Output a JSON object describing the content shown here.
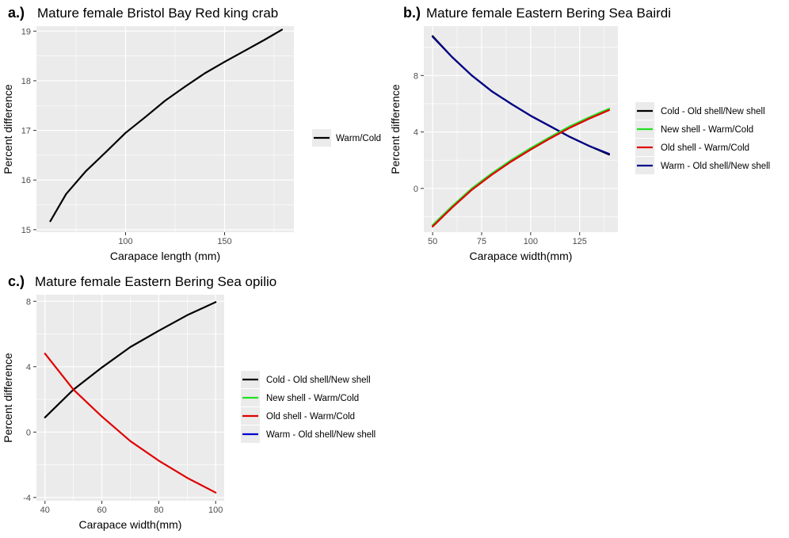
{
  "colors": {
    "panel_bg": "#EBEBEB",
    "grid": "#FFFFFF",
    "tick_text": "#4D4D4D",
    "text": "#000000",
    "legend_key_bg": "#EBEBEB"
  },
  "chart_data": [
    {
      "id": "a",
      "type": "line",
      "tag": "a.)",
      "title": "Mature female Bristol Bay Red king crab",
      "xlabel": "Carapace length (mm)",
      "ylabel": "Percent difference",
      "xlim": [
        55,
        185
      ],
      "ylim": [
        14.95,
        19.1
      ],
      "xticks": [
        100,
        150
      ],
      "yticks": [
        15,
        16,
        17,
        18,
        19
      ],
      "xminor": [
        75,
        125,
        175
      ],
      "yminor": [
        15.5,
        16.5,
        17.5,
        18.5
      ],
      "grid": true,
      "legend_position": "right",
      "legend": [
        {
          "name": "Warm/Cold",
          "color": "#000000"
        }
      ],
      "series": [
        {
          "name": "Warm/Cold",
          "color": "#000000",
          "x": [
            62,
            70,
            80,
            90,
            100,
            110,
            120,
            130,
            140,
            150,
            160,
            170,
            179
          ],
          "y": [
            15.17,
            15.72,
            16.18,
            16.56,
            16.95,
            17.27,
            17.6,
            17.88,
            18.15,
            18.38,
            18.6,
            18.82,
            19.03
          ]
        }
      ]
    },
    {
      "id": "b",
      "type": "line",
      "tag": "b.)",
      "title": "Mature female Eastern Bering Sea Bairdi",
      "xlabel": "Carapace width(mm)",
      "ylabel": "Percent difference",
      "xlim": [
        45.5,
        144.5
      ],
      "ylim": [
        -3.1,
        11.5
      ],
      "xticks": [
        50,
        75,
        100,
        125
      ],
      "yticks": [
        0,
        4,
        8
      ],
      "xminor": [
        62.5,
        87.5,
        112.5,
        137.5
      ],
      "yminor": [
        -2,
        2,
        6,
        10
      ],
      "grid": true,
      "legend_position": "right",
      "legend": [
        {
          "name": "Cold - Old shell/New shell",
          "color": "#000000"
        },
        {
          "name": "New shell - Warm/Cold",
          "color": "#22E022"
        },
        {
          "name": "Old shell - Warm/Cold",
          "color": "#E00000"
        },
        {
          "name": "Warm - Old shell/New shell",
          "color": "#00008B"
        }
      ],
      "series": [
        {
          "name": "Cold - Old shell/New shell",
          "color": "#000000",
          "x": [
            50,
            60,
            70,
            80,
            90,
            100,
            110,
            120,
            130,
            140
          ],
          "y": [
            10.8,
            9.3,
            8.0,
            6.9,
            6.0,
            5.15,
            4.4,
            3.65,
            3.0,
            2.4
          ]
        },
        {
          "name": "Warm - Old shell/New shell",
          "color": "#00008B",
          "x": [
            50,
            60,
            70,
            80,
            90,
            100,
            110,
            120,
            130,
            140
          ],
          "y": [
            10.75,
            9.3,
            8.0,
            6.9,
            6.0,
            5.15,
            4.4,
            3.65,
            3.0,
            2.45
          ]
        },
        {
          "name": "New shell - Warm/Cold",
          "color": "#22E022",
          "x": [
            50,
            60,
            70,
            80,
            90,
            100,
            110,
            120,
            130,
            140
          ],
          "y": [
            -2.6,
            -1.25,
            0.0,
            1.05,
            2.0,
            2.85,
            3.65,
            4.4,
            5.05,
            5.65
          ]
        },
        {
          "name": "Old shell - Warm/Cold",
          "color": "#E00000",
          "x": [
            50,
            60,
            70,
            80,
            90,
            100,
            110,
            120,
            130,
            140
          ],
          "y": [
            -2.7,
            -1.35,
            -0.1,
            0.95,
            1.9,
            2.75,
            3.55,
            4.3,
            4.95,
            5.55
          ]
        }
      ]
    },
    {
      "id": "c",
      "type": "line",
      "tag": "c.)",
      "title": "Mature female Eastern Bering Sea opilio",
      "xlabel": "Carapace width(mm)",
      "ylabel": "Percent difference",
      "xlim": [
        37,
        103
      ],
      "ylim": [
        -4.2,
        8.4
      ],
      "xticks": [
        40,
        60,
        80,
        100
      ],
      "yticks": [
        -4,
        0,
        4,
        8
      ],
      "xminor": [
        50,
        70,
        90
      ],
      "yminor": [
        -2,
        2,
        6
      ],
      "grid": true,
      "legend_position": "right",
      "legend": [
        {
          "name": "Cold - Old shell/New shell",
          "color": "#000000"
        },
        {
          "name": "New shell - Warm/Cold",
          "color": "#22E022"
        },
        {
          "name": "Old shell - Warm/Cold",
          "color": "#E00000"
        },
        {
          "name": "Warm - Old shell/New shell",
          "color": "#0000CD"
        }
      ],
      "series": [
        {
          "name": "Cold - Old shell/New shell",
          "color": "#000000",
          "x": [
            40,
            50,
            60,
            70,
            80,
            90,
            100
          ],
          "y": [
            0.9,
            2.6,
            3.95,
            5.2,
            6.2,
            7.15,
            7.95
          ]
        },
        {
          "name": "Old shell - Warm/Cold",
          "color": "#E00000",
          "x": [
            40,
            50,
            60,
            70,
            80,
            90,
            100
          ],
          "y": [
            4.8,
            2.6,
            0.95,
            -0.55,
            -1.75,
            -2.8,
            -3.7
          ]
        }
      ]
    }
  ]
}
